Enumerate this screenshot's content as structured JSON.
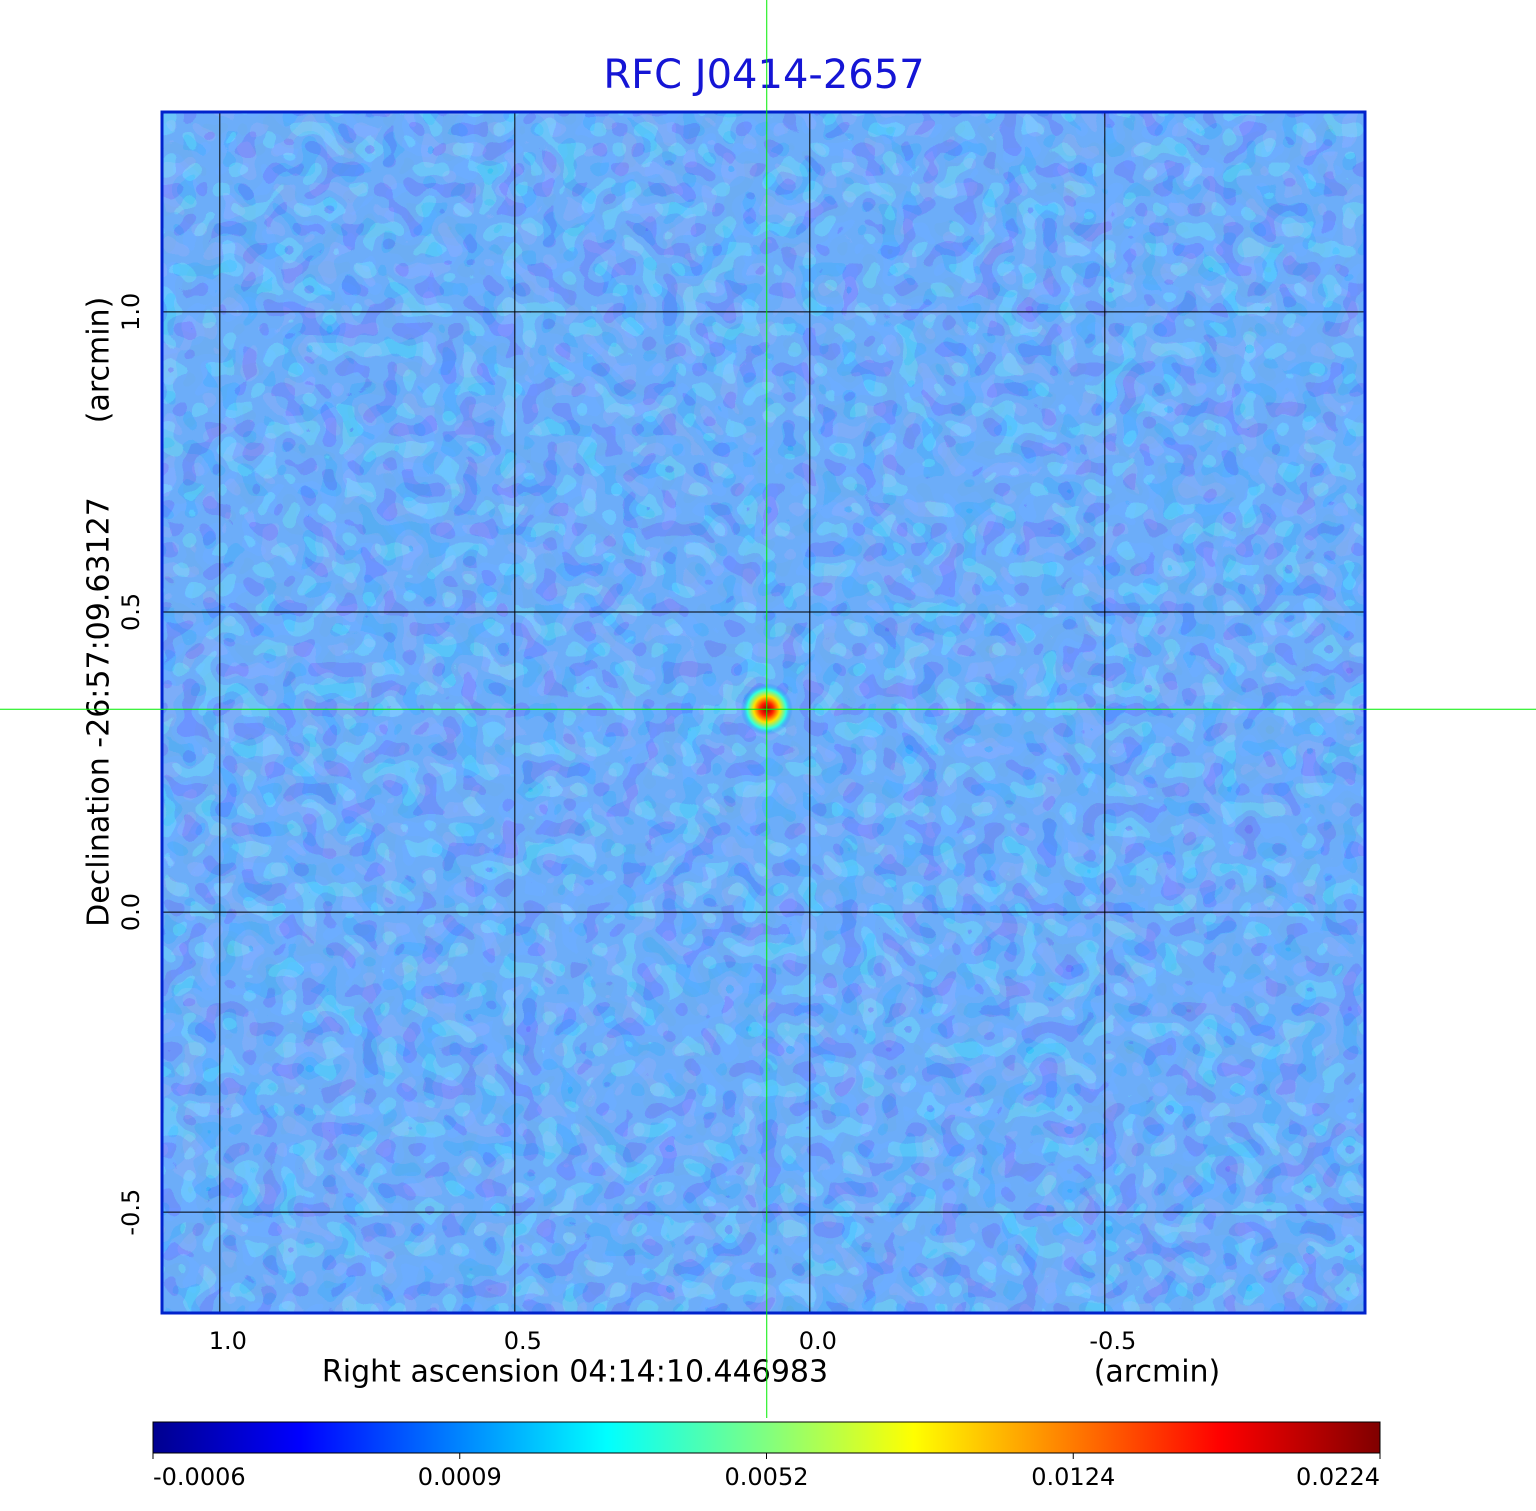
{
  "chart_data": {
    "type": "image",
    "title": "RFC J0414-2657",
    "x_label": "Right ascension  04:14:10.446983",
    "x_unit": "(arcmin)",
    "y_label": "Declination  -26:57:09.63127",
    "y_unit": "(arcmin)",
    "xlim": [
      1.098,
      -0.941
    ],
    "ylim": [
      -0.668,
      1.333
    ],
    "xticks": [
      {
        "value": 1,
        "label": "1.0"
      },
      0.5,
      {
        "value": 0,
        "label": "0.0"
      },
      -0.5
    ],
    "yticks": [
      -0.5,
      {
        "value": 0,
        "label": "0.0"
      },
      0.5,
      {
        "value": 1,
        "label": "1.0"
      }
    ],
    "grid": true,
    "colormap": "jet",
    "colorbar_ticks": [
      -0.0006,
      0.0009,
      0.0052,
      0.0124,
      0.0224
    ],
    "source": {
      "x": 0.073,
      "y": 0.338,
      "value": 0.0224
    },
    "frame_color": "#0022cc",
    "title_color": "#1515d5",
    "crosshair_color": "#00ee00"
  }
}
